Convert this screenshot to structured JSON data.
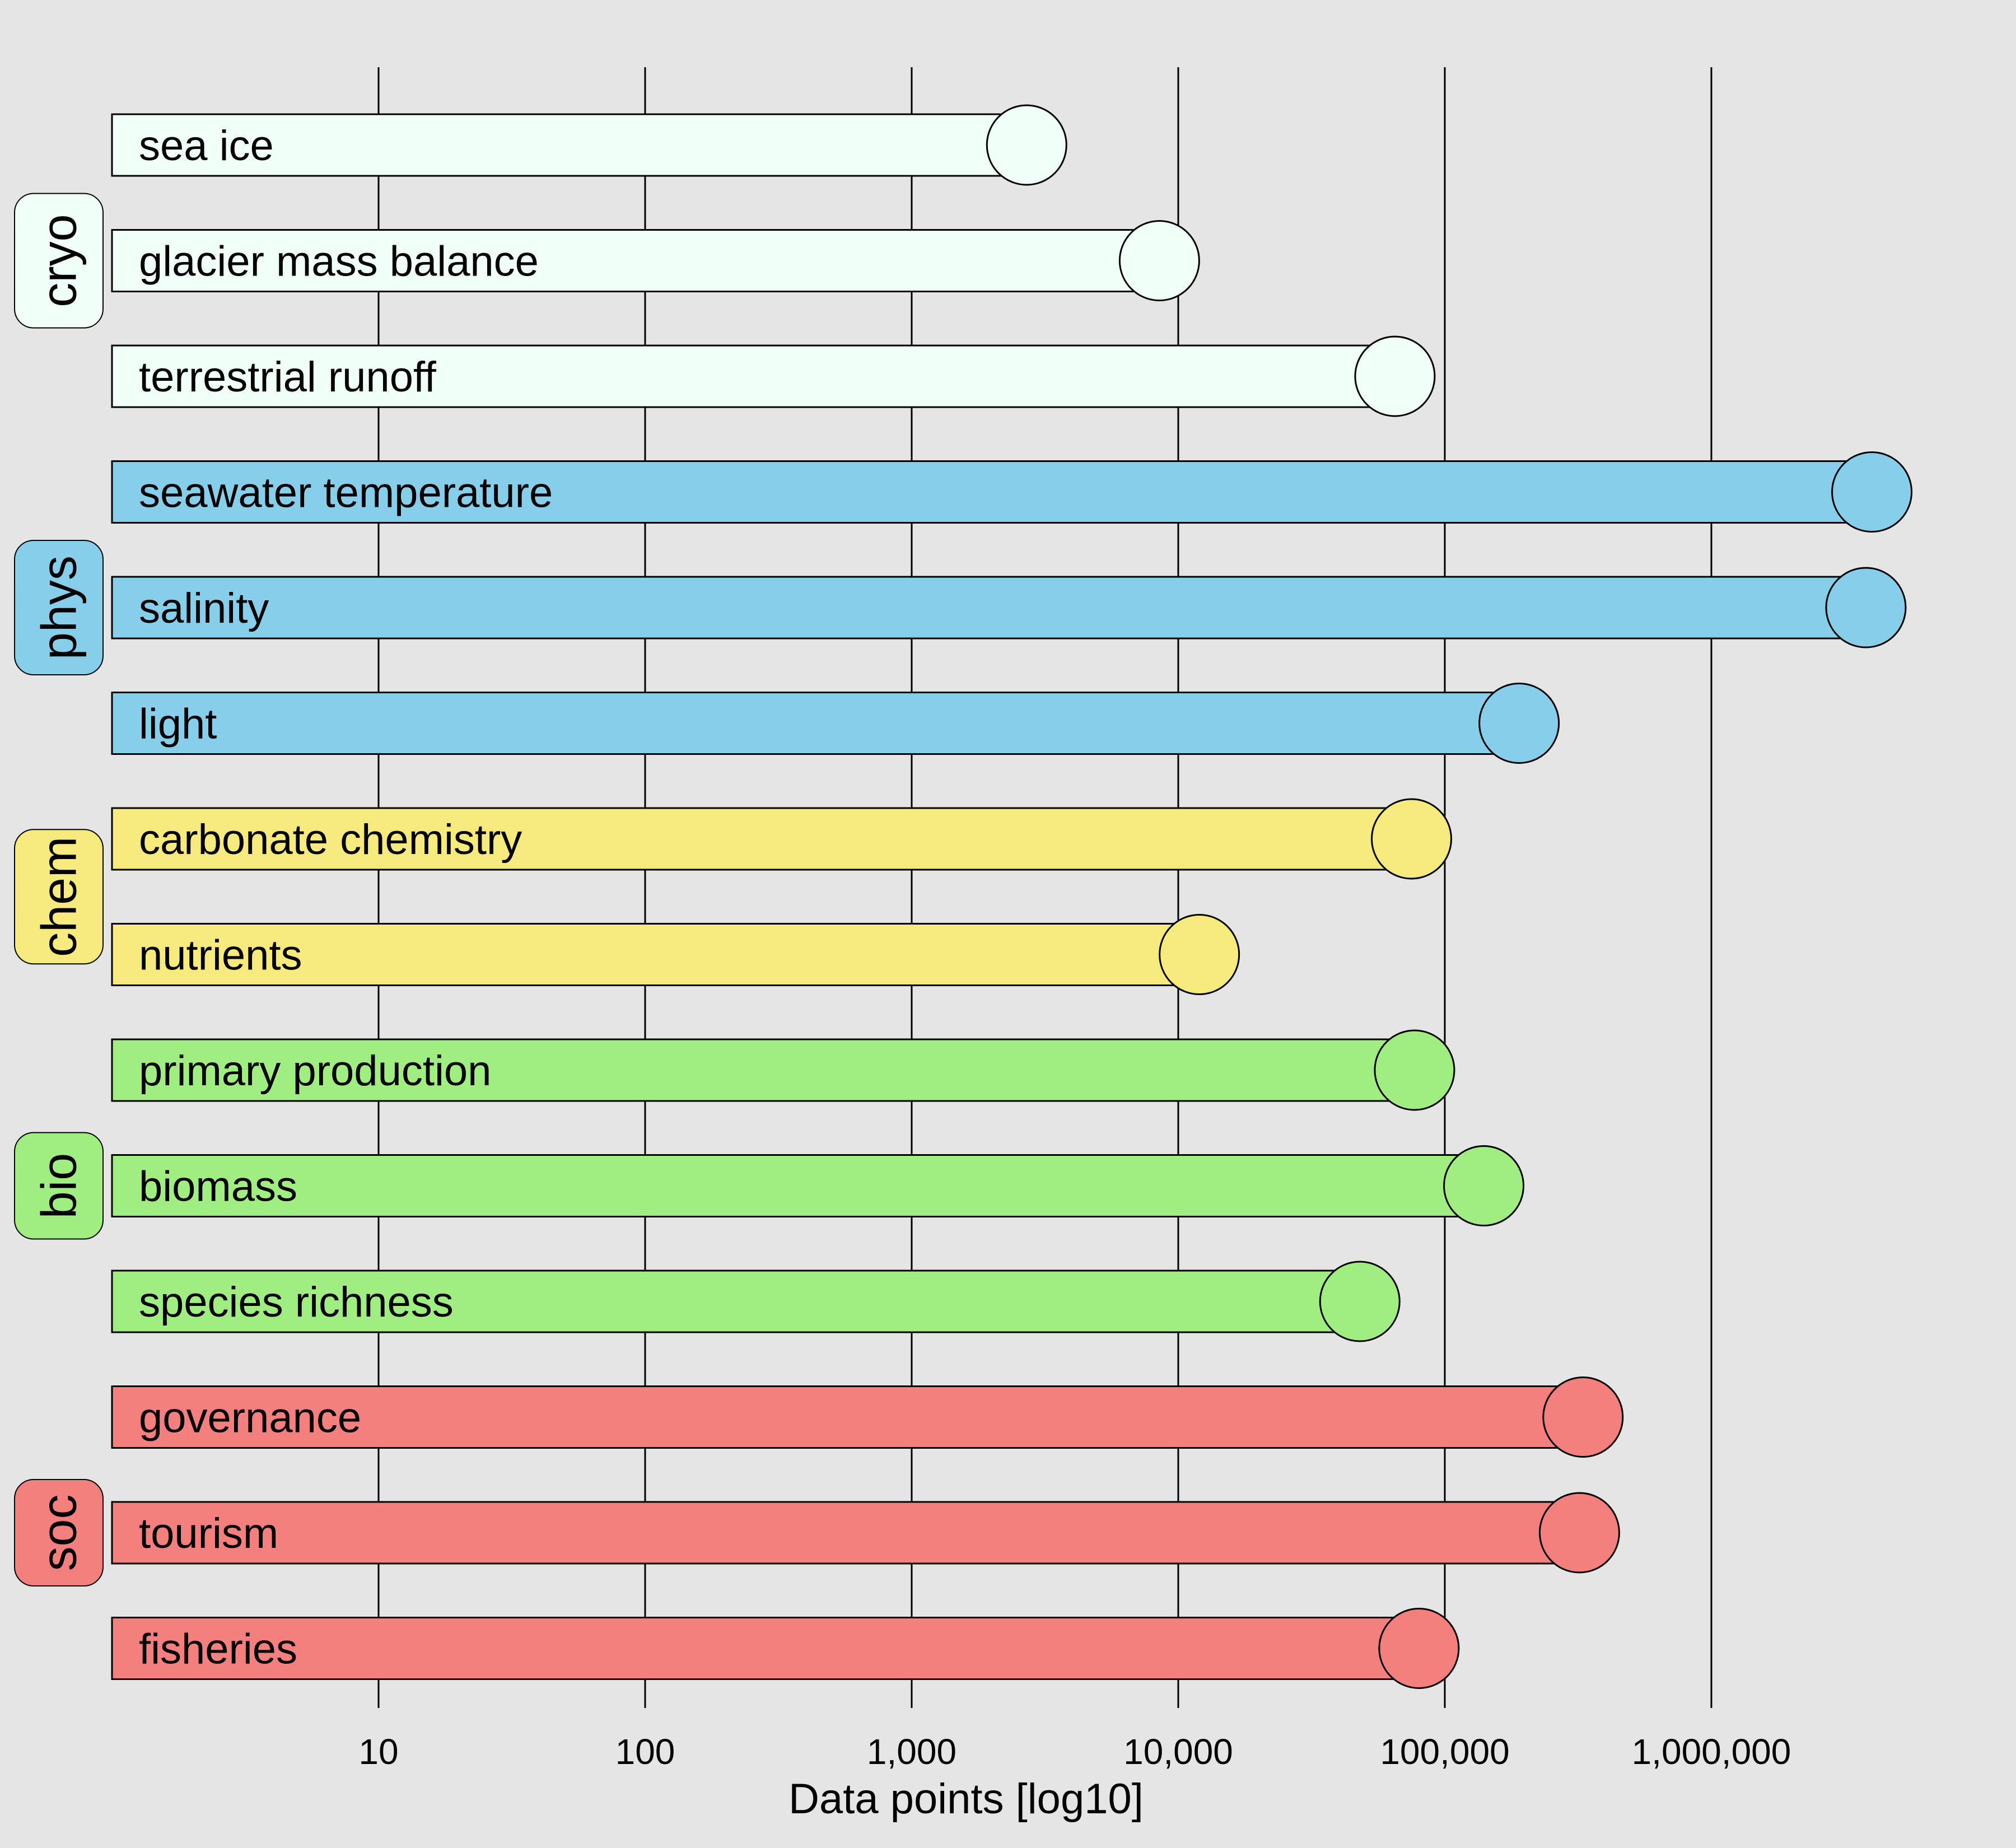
{
  "chart_data": {
    "type": "bar",
    "orientation": "horizontal",
    "xlabel": "Data points [log10]",
    "x_scale": "log10",
    "xlim": [
      1,
      10000000
    ],
    "x_ticks": [
      10,
      100,
      1000,
      10000,
      100000,
      1000000
    ],
    "x_tick_labels": [
      "10",
      "100",
      "1,000",
      "10,000",
      "100,000",
      "1,000,000"
    ],
    "grid": "vertical lines at ticks",
    "groups": [
      {
        "name": "cryo",
        "color": "#F0FFF8",
        "rows": [
          {
            "label": "sea ice",
            "value": 2700
          },
          {
            "label": "glacier mass balance",
            "value": 8500
          },
          {
            "label": "terrestrial runoff",
            "value": 65000
          }
        ]
      },
      {
        "name": "phys",
        "color": "#87CEEB",
        "rows": [
          {
            "label": "seawater temperature",
            "value": 4000000
          },
          {
            "label": "salinity",
            "value": 3800000
          },
          {
            "label": "light",
            "value": 190000
          }
        ]
      },
      {
        "name": "chem",
        "color": "#F6EA7C",
        "rows": [
          {
            "label": "carbonate chemistry",
            "value": 75000
          },
          {
            "label": "nutrients",
            "value": 12000
          }
        ]
      },
      {
        "name": "bio",
        "color": "#A0EE82",
        "rows": [
          {
            "label": "primary production",
            "value": 77000
          },
          {
            "label": "biomass",
            "value": 140000
          },
          {
            "label": "species richness",
            "value": 48000
          }
        ]
      },
      {
        "name": "soc",
        "color": "#F47F7F",
        "rows": [
          {
            "label": "governance",
            "value": 330000
          },
          {
            "label": "tourism",
            "value": 320000
          },
          {
            "label": "fisheries",
            "value": 80000
          }
        ]
      }
    ]
  }
}
